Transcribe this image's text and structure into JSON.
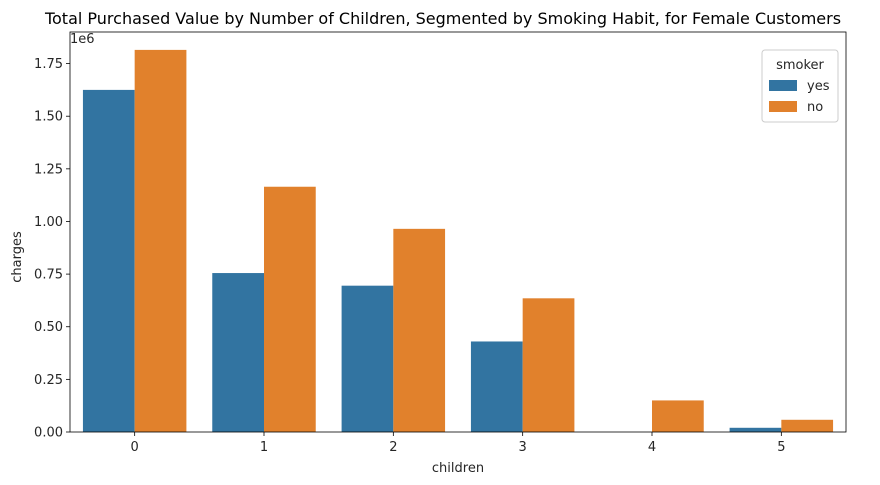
{
  "chart_data": {
    "type": "bar",
    "title": "Total Purchased Value by Number of Children, Segmented by Smoking Habit, for Female Customers",
    "xlabel": "children",
    "ylabel": "charges",
    "y_offset_label": "1e6",
    "categories": [
      "0",
      "1",
      "2",
      "3",
      "4",
      "5"
    ],
    "ylim": [
      0,
      1.9
    ],
    "yticks": [
      0.0,
      0.25,
      0.5,
      0.75,
      1.0,
      1.25,
      1.5,
      1.75
    ],
    "ytick_labels": [
      "0.00",
      "0.25",
      "0.50",
      "0.75",
      "1.00",
      "1.25",
      "1.50",
      "1.75"
    ],
    "grid": false,
    "legend": {
      "title": "smoker",
      "placement": "top-right"
    },
    "series": [
      {
        "name": "yes",
        "color": "#3274a1",
        "values": [
          1.625,
          0.755,
          0.695,
          0.43,
          0.0,
          0.02
        ]
      },
      {
        "name": "no",
        "color": "#e1812c",
        "values": [
          1.815,
          1.165,
          0.965,
          0.635,
          0.15,
          0.058
        ]
      }
    ]
  }
}
